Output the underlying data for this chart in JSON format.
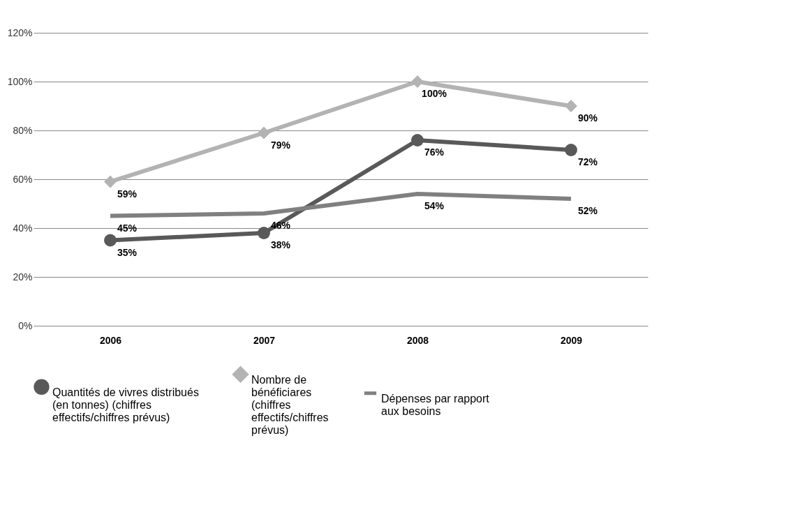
{
  "chart_data": {
    "type": "line",
    "categories": [
      "2006",
      "2007",
      "2008",
      "2009"
    ],
    "series": [
      {
        "name": "Quantités de vivres distribués (en tonnes) (chiffres effectifs/chiffres prévus)",
        "color": "#595959",
        "marker": "circle",
        "values": [
          35,
          38,
          76,
          72
        ],
        "value_labels": [
          "35%",
          "38%",
          "76%",
          "72%"
        ]
      },
      {
        "name": "Nombre de bénéficiares (chiffres effectifs/chiffres prévus)",
        "color": "#b3b3b3",
        "marker": "diamond",
        "values": [
          59,
          79,
          100,
          90
        ],
        "value_labels": [
          "59%",
          "79%",
          "100%",
          "90%"
        ]
      },
      {
        "name": "Dépenses par rapport aux besoins",
        "color": "#808080",
        "marker": "none",
        "values": [
          45,
          46,
          54,
          52
        ],
        "value_labels": [
          "45%",
          "46%",
          "54%",
          "52%"
        ]
      }
    ],
    "ylim": [
      0,
      120
    ],
    "yticks": [
      {
        "value": 0,
        "label": "0%"
      },
      {
        "value": 20,
        "label": "20%"
      },
      {
        "value": 40,
        "label": "40%"
      },
      {
        "value": 60,
        "label": "60%"
      },
      {
        "value": 80,
        "label": "80%"
      },
      {
        "value": 100,
        "label": "100%"
      },
      {
        "value": 120,
        "label": "120%"
      }
    ],
    "grid": "y",
    "legend": "bottom"
  }
}
